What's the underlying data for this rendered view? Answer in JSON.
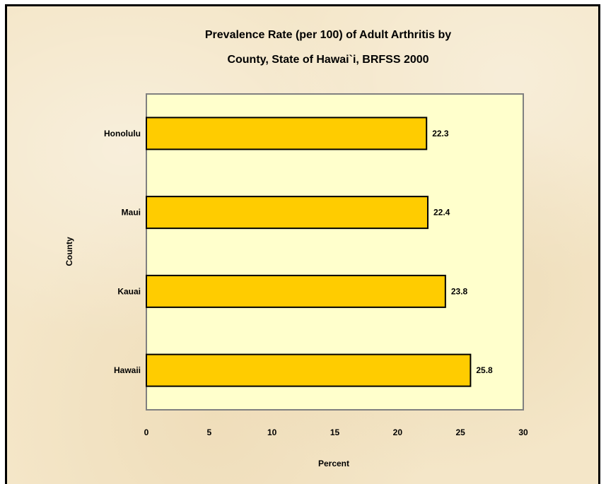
{
  "chart_data": {
    "type": "bar",
    "orientation": "horizontal",
    "title_lines": [
      "Prevalence Rate (per 100) of Adult Arthritis by",
      "County, State of Hawai`i, BRFSS 2000"
    ],
    "xlabel": "Percent",
    "ylabel": "County",
    "categories": [
      "Honolulu",
      "Maui",
      "Kauai",
      "Hawaii"
    ],
    "values": [
      22.3,
      22.4,
      23.8,
      25.8
    ],
    "data_labels": [
      "22.3",
      "22.4",
      "23.8",
      "25.8"
    ],
    "xlim": [
      0,
      30
    ],
    "x_ticks": [
      "0",
      "5",
      "10",
      "15",
      "20",
      "25",
      "30"
    ],
    "x_tick_values": [
      0,
      5,
      10,
      15,
      20,
      25,
      30
    ],
    "grid": false,
    "legend": "none",
    "colors": {
      "bar_fill": "#FFCC00",
      "bar_stroke": "#000000",
      "plot_background": "#FFFFCC"
    }
  }
}
